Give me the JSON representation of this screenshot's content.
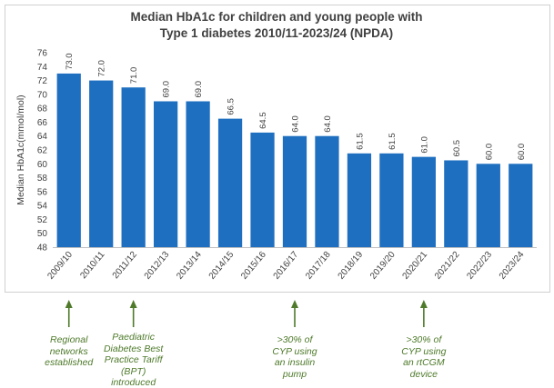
{
  "chart_data": {
    "type": "bar",
    "title": "Median HbA1c for children and young people with Type 1 diabetes 2010/11-2023/24 (NPDA)",
    "title_lines": [
      "Median HbA1c for children and young people with",
      "Type 1 diabetes 2010/11-2023/24 (NPDA)"
    ],
    "ylabel": "Median HbA1c(mmol/mol)",
    "xlabel": "",
    "ylim": [
      48,
      76
    ],
    "ytick_step": 2,
    "categories": [
      "2009/10",
      "2010/11",
      "2011/12",
      "2012/13",
      "2013/14",
      "2014/15",
      "2015/16",
      "2016/17",
      "2017/18",
      "2018/19",
      "2019/20",
      "2020/21",
      "2021/22",
      "2022/23",
      "2023/24"
    ],
    "values": [
      73.0,
      72.0,
      71.0,
      69.0,
      69.0,
      66.5,
      64.5,
      64.0,
      64.0,
      61.5,
      61.5,
      61.0,
      60.5,
      60.0,
      60.0
    ],
    "value_labels": [
      "73.0",
      "72.0",
      "71.0",
      "69.0",
      "69.0",
      "66.5",
      "64.5",
      "64.0",
      "64.0",
      "61.5",
      "61.5",
      "61.0",
      "60.5",
      "60.0",
      "60.0"
    ],
    "grid": false,
    "legend": "none",
    "bar_color": "#1f6fc1"
  },
  "annotations": [
    {
      "category_index": 0,
      "lines": [
        "Regional",
        "networks",
        "established"
      ]
    },
    {
      "category_index": 2,
      "lines": [
        "Paediatric",
        "Diabetes Best",
        "Practice Tariff",
        "(BPT)",
        "introduced"
      ]
    },
    {
      "category_index": 7,
      "lines": [
        ">30% of",
        "CYP using",
        "an insulin",
        "pump"
      ]
    },
    {
      "category_index": 11,
      "lines": [
        ">30% of",
        "CYP using",
        "an rtCGM",
        "device"
      ]
    }
  ],
  "colors": {
    "annotation": "#4e7a2a",
    "axis": "#bfbfbf",
    "text": "#404040"
  }
}
